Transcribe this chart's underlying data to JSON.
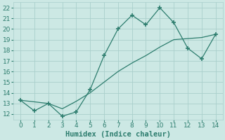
{
  "series1_x": [
    0,
    1,
    2,
    3,
    4,
    5,
    6,
    7,
    8,
    9,
    10,
    11,
    12,
    13,
    14
  ],
  "series1_y": [
    13.3,
    12.3,
    13.0,
    11.8,
    12.2,
    14.3,
    17.5,
    20.0,
    21.3,
    20.4,
    22.0,
    20.6,
    18.2,
    17.2,
    19.5
  ],
  "series2_x": [
    0,
    2,
    3,
    4,
    5,
    6,
    7,
    8,
    9,
    10,
    11,
    13,
    14
  ],
  "series2_y": [
    13.3,
    13.0,
    12.5,
    13.2,
    14.0,
    15.0,
    16.0,
    16.8,
    17.5,
    18.3,
    19.0,
    19.2,
    19.5
  ],
  "line_color": "#2d7d6e",
  "bg_color": "#cce8e4",
  "grid_color": "#aacfcc",
  "xlabel": "Humidex (Indice chaleur)",
  "xlim": [
    -0.5,
    14.5
  ],
  "ylim": [
    11.5,
    22.5
  ],
  "yticks": [
    12,
    13,
    14,
    15,
    16,
    17,
    18,
    19,
    20,
    21,
    22
  ],
  "xticks": [
    0,
    1,
    2,
    3,
    4,
    5,
    6,
    7,
    8,
    9,
    10,
    11,
    12,
    13,
    14
  ],
  "tick_fontsize": 6.5,
  "xlabel_fontsize": 7.5
}
